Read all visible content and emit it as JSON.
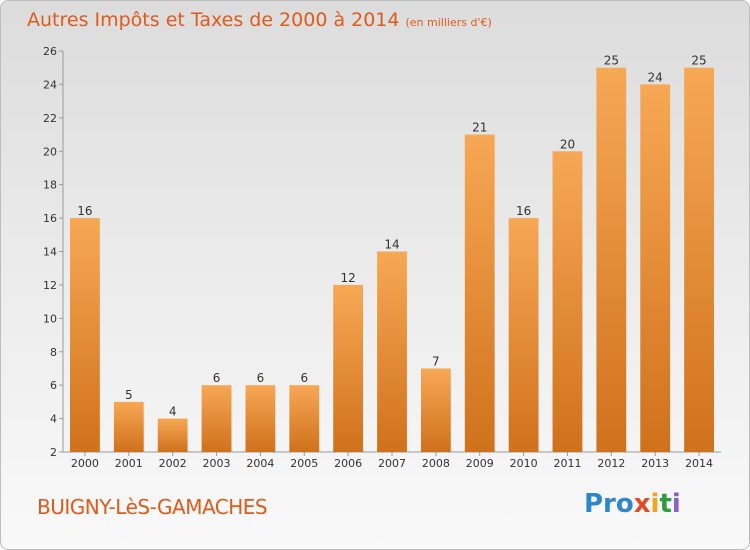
{
  "title": "Autres Impôts et Taxes de 2000 à 2014",
  "unit": "(en milliers d'€)",
  "town": "BUIGNY-LèS-GAMACHES",
  "brand": {
    "letters": [
      "Pro",
      "x",
      "i",
      "t",
      "i"
    ]
  },
  "colors": {
    "title": "#e05a1a",
    "bar_top": "#f7a855",
    "bar_bottom": "#d0711c"
  },
  "chart_data": {
    "type": "bar",
    "title": "Autres Impôts et Taxes de 2000 à 2014",
    "subtitle": "(en milliers d'€)",
    "categories": [
      "2000",
      "2001",
      "2002",
      "2003",
      "2004",
      "2005",
      "2006",
      "2007",
      "2008",
      "2009",
      "2010",
      "2011",
      "2012",
      "2013",
      "2014"
    ],
    "values": [
      16,
      5,
      4,
      6,
      6,
      6,
      12,
      14,
      7,
      21,
      16,
      20,
      25,
      24,
      25
    ],
    "ylim": [
      2,
      26
    ],
    "yticks": [
      2,
      4,
      6,
      8,
      10,
      12,
      14,
      16,
      18,
      20,
      22,
      24,
      26
    ],
    "grid": false,
    "legend": "none"
  }
}
